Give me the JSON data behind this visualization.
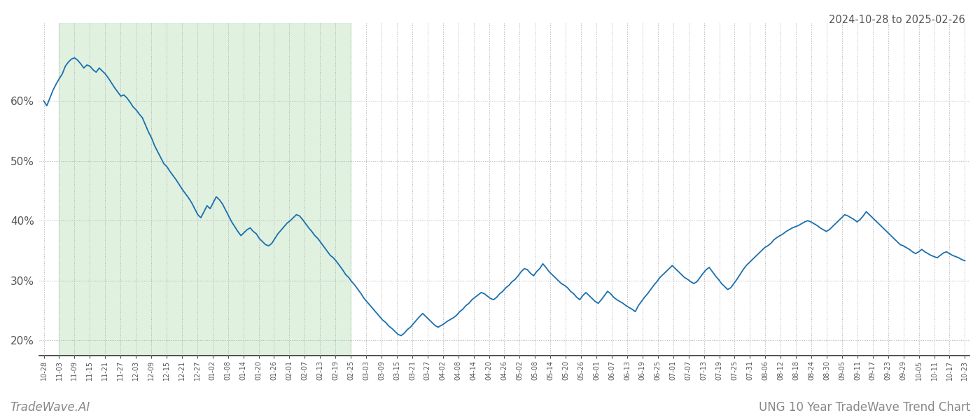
{
  "title_top_right": "2024-10-28 to 2025-02-26",
  "title_bottom_left": "TradeWave.AI",
  "title_bottom_right": "UNG 10 Year TradeWave Trend Chart",
  "line_color": "#1a6fad",
  "line_width": 1.3,
  "shaded_color": "#c8e6c8",
  "shaded_alpha": 0.55,
  "background_color": "#ffffff",
  "grid_color": "#b0b0b0",
  "ylim": [
    0.175,
    0.73
  ],
  "yticks": [
    0.2,
    0.3,
    0.4,
    0.5,
    0.6
  ],
  "ytick_labels": [
    "20%",
    "30%",
    "40%",
    "50%",
    "60%"
  ],
  "x_labels": [
    "10-28",
    "11-03",
    "11-09",
    "11-15",
    "11-21",
    "11-27",
    "12-03",
    "12-09",
    "12-15",
    "12-21",
    "12-27",
    "01-02",
    "01-08",
    "01-14",
    "01-20",
    "01-26",
    "02-01",
    "02-07",
    "02-13",
    "02-19",
    "02-25",
    "03-03",
    "03-09",
    "03-15",
    "03-21",
    "03-27",
    "04-02",
    "04-08",
    "04-14",
    "04-20",
    "04-26",
    "05-02",
    "05-08",
    "05-14",
    "05-20",
    "05-26",
    "06-01",
    "06-07",
    "06-13",
    "06-19",
    "06-25",
    "07-01",
    "07-07",
    "07-13",
    "07-19",
    "07-25",
    "07-31",
    "08-06",
    "08-12",
    "08-18",
    "08-24",
    "08-30",
    "09-05",
    "09-11",
    "09-17",
    "09-23",
    "09-29",
    "10-05",
    "10-11",
    "10-17",
    "10-23"
  ],
  "shaded_label_start": "11-03",
  "shaded_label_end": "02-25",
  "values": [
    0.6,
    0.592,
    0.605,
    0.618,
    0.628,
    0.637,
    0.645,
    0.658,
    0.665,
    0.67,
    0.672,
    0.668,
    0.662,
    0.655,
    0.66,
    0.658,
    0.652,
    0.648,
    0.655,
    0.65,
    0.645,
    0.638,
    0.63,
    0.622,
    0.615,
    0.608,
    0.61,
    0.605,
    0.598,
    0.59,
    0.585,
    0.578,
    0.572,
    0.56,
    0.548,
    0.538,
    0.525,
    0.515,
    0.505,
    0.495,
    0.49,
    0.482,
    0.475,
    0.468,
    0.46,
    0.452,
    0.445,
    0.438,
    0.43,
    0.42,
    0.41,
    0.405,
    0.415,
    0.425,
    0.42,
    0.43,
    0.44,
    0.435,
    0.428,
    0.418,
    0.408,
    0.398,
    0.39,
    0.382,
    0.375,
    0.38,
    0.385,
    0.388,
    0.382,
    0.378,
    0.37,
    0.365,
    0.36,
    0.358,
    0.362,
    0.37,
    0.378,
    0.384,
    0.39,
    0.396,
    0.4,
    0.405,
    0.41,
    0.408,
    0.402,
    0.395,
    0.388,
    0.382,
    0.375,
    0.37,
    0.363,
    0.356,
    0.349,
    0.342,
    0.338,
    0.332,
    0.325,
    0.318,
    0.31,
    0.305,
    0.298,
    0.292,
    0.285,
    0.278,
    0.27,
    0.264,
    0.258,
    0.252,
    0.246,
    0.24,
    0.234,
    0.23,
    0.224,
    0.22,
    0.215,
    0.21,
    0.208,
    0.212,
    0.218,
    0.222,
    0.228,
    0.234,
    0.24,
    0.245,
    0.24,
    0.235,
    0.23,
    0.225,
    0.222,
    0.225,
    0.228,
    0.232,
    0.235,
    0.238,
    0.242,
    0.248,
    0.252,
    0.258,
    0.262,
    0.268,
    0.272,
    0.276,
    0.28,
    0.278,
    0.274,
    0.27,
    0.268,
    0.272,
    0.278,
    0.282,
    0.288,
    0.292,
    0.298,
    0.302,
    0.308,
    0.315,
    0.32,
    0.318,
    0.312,
    0.308,
    0.315,
    0.32,
    0.328,
    0.322,
    0.315,
    0.31,
    0.305,
    0.3,
    0.295,
    0.292,
    0.288,
    0.282,
    0.278,
    0.272,
    0.268,
    0.275,
    0.28,
    0.275,
    0.27,
    0.265,
    0.262,
    0.268,
    0.275,
    0.282,
    0.278,
    0.272,
    0.268,
    0.265,
    0.262,
    0.258,
    0.255,
    0.252,
    0.248,
    0.258,
    0.265,
    0.272,
    0.278,
    0.285,
    0.292,
    0.298,
    0.305,
    0.31,
    0.315,
    0.32,
    0.325,
    0.32,
    0.315,
    0.31,
    0.305,
    0.302,
    0.298,
    0.295,
    0.298,
    0.305,
    0.312,
    0.318,
    0.322,
    0.315,
    0.308,
    0.302,
    0.295,
    0.29,
    0.285,
    0.288,
    0.295,
    0.302,
    0.31,
    0.318,
    0.325,
    0.33,
    0.335,
    0.34,
    0.345,
    0.35,
    0.355,
    0.358,
    0.362,
    0.368,
    0.372,
    0.375,
    0.378,
    0.382,
    0.385,
    0.388,
    0.39,
    0.392,
    0.395,
    0.398,
    0.4,
    0.398,
    0.395,
    0.392,
    0.388,
    0.385,
    0.382,
    0.385,
    0.39,
    0.395,
    0.4,
    0.405,
    0.41,
    0.408,
    0.405,
    0.402,
    0.398,
    0.402,
    0.408,
    0.415,
    0.41,
    0.405,
    0.4,
    0.395,
    0.39,
    0.385,
    0.38,
    0.375,
    0.37,
    0.365,
    0.36,
    0.358,
    0.355,
    0.352,
    0.348,
    0.345,
    0.348,
    0.352,
    0.348,
    0.345,
    0.342,
    0.34,
    0.338,
    0.342,
    0.346,
    0.348,
    0.345,
    0.342,
    0.34,
    0.338,
    0.335,
    0.333
  ]
}
